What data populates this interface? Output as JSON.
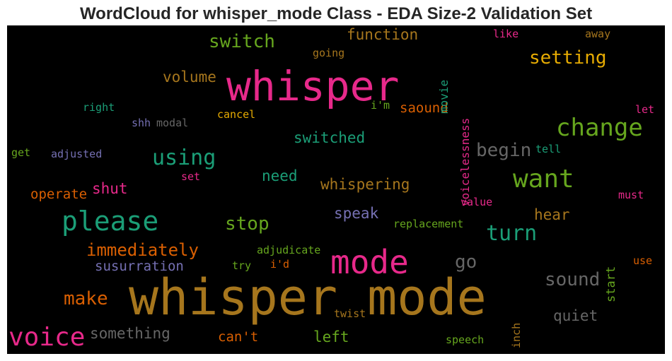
{
  "title": "WordCloud for whisper_mode Class - EDA Size-2 Validation Set",
  "palette": {
    "background": "#000000",
    "pink": "#e7298a",
    "ochre": "#a6761d",
    "teal": "#1b9e77",
    "green": "#66a61e",
    "orange": "#d95f02",
    "gold": "#e6ab02",
    "purple": "#7570b3",
    "gray": "#666666"
  },
  "words": [
    "whisper mode",
    "whisper",
    "mode",
    "please",
    "voice",
    "want",
    "change",
    "using",
    "switch",
    "setting",
    "turn",
    "stop",
    "immediately",
    "begin",
    "function",
    "sound",
    "go",
    "make",
    "switched",
    "whispering",
    "speak",
    "hear",
    "need",
    "volume",
    "something",
    "shut",
    "operate",
    "susurration",
    "quiet",
    "saound",
    "left",
    "can't",
    "voicelessness",
    "movie",
    "start",
    "replacement",
    "adjudicate",
    "cancel",
    "going",
    "like",
    "away",
    "tell",
    "let",
    "must",
    "value",
    "i'm",
    "i'd",
    "try",
    "twist",
    "speech",
    "inch",
    "use",
    "right",
    "shh",
    "modal",
    "adjusted",
    "get",
    "set"
  ]
}
